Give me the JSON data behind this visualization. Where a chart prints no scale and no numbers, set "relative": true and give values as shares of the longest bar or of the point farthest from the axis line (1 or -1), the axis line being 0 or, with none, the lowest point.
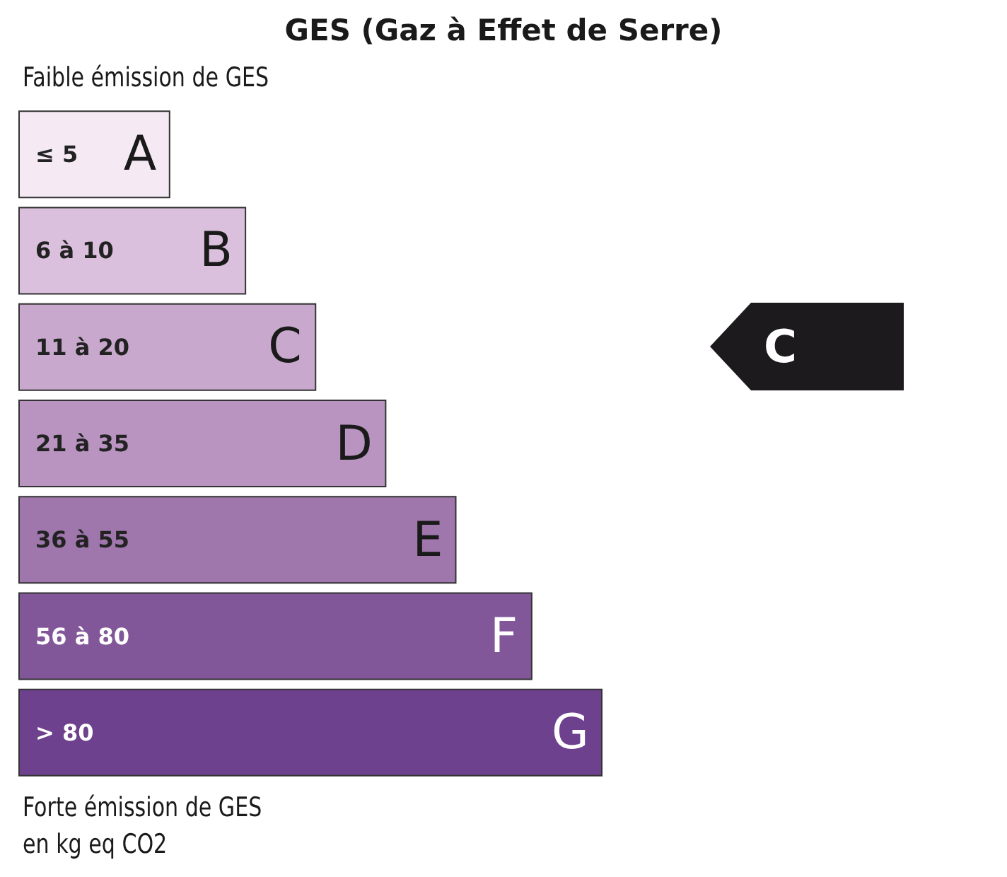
{
  "chart_data": {
    "type": "bar",
    "orientation": "horizontal",
    "relative": true,
    "title": "GES (Gaz à Effet de Serre)",
    "categories": [
      "≤ 5",
      "6 à 10",
      "11 à 20",
      "21 à 35",
      "36 à 55",
      "56 à 80",
      "> 80"
    ],
    "values": [
      0.26,
      0.39,
      0.51,
      0.63,
      0.75,
      0.88,
      1
    ],
    "colors": [
      "#f5eaf4",
      "#dbc0dd",
      "#c8a9cd",
      "#b994c0",
      "#9f77ac",
      "#825799",
      "#6d418d"
    ],
    "annotations": [
      "Faible émission de GES",
      "Forte émission de GES",
      "en kg eq CO2",
      {
        "text": "A",
        "x": 0.26,
        "y": "≤ 5"
      },
      {
        "text": "B",
        "x": 0.39,
        "y": "6 à 10"
      },
      {
        "text": "C",
        "x": 0.51,
        "y": "11 à 20"
      },
      {
        "text": "D",
        "x": 0.63,
        "y": "21 à 35"
      },
      {
        "text": "E",
        "x": 0.75,
        "y": "36 à 55"
      },
      {
        "text": "F",
        "x": 0.88,
        "y": "56 à 80"
      },
      {
        "text": "G",
        "x": 1,
        "y": "> 80"
      },
      "C"
    ]
  }
}
